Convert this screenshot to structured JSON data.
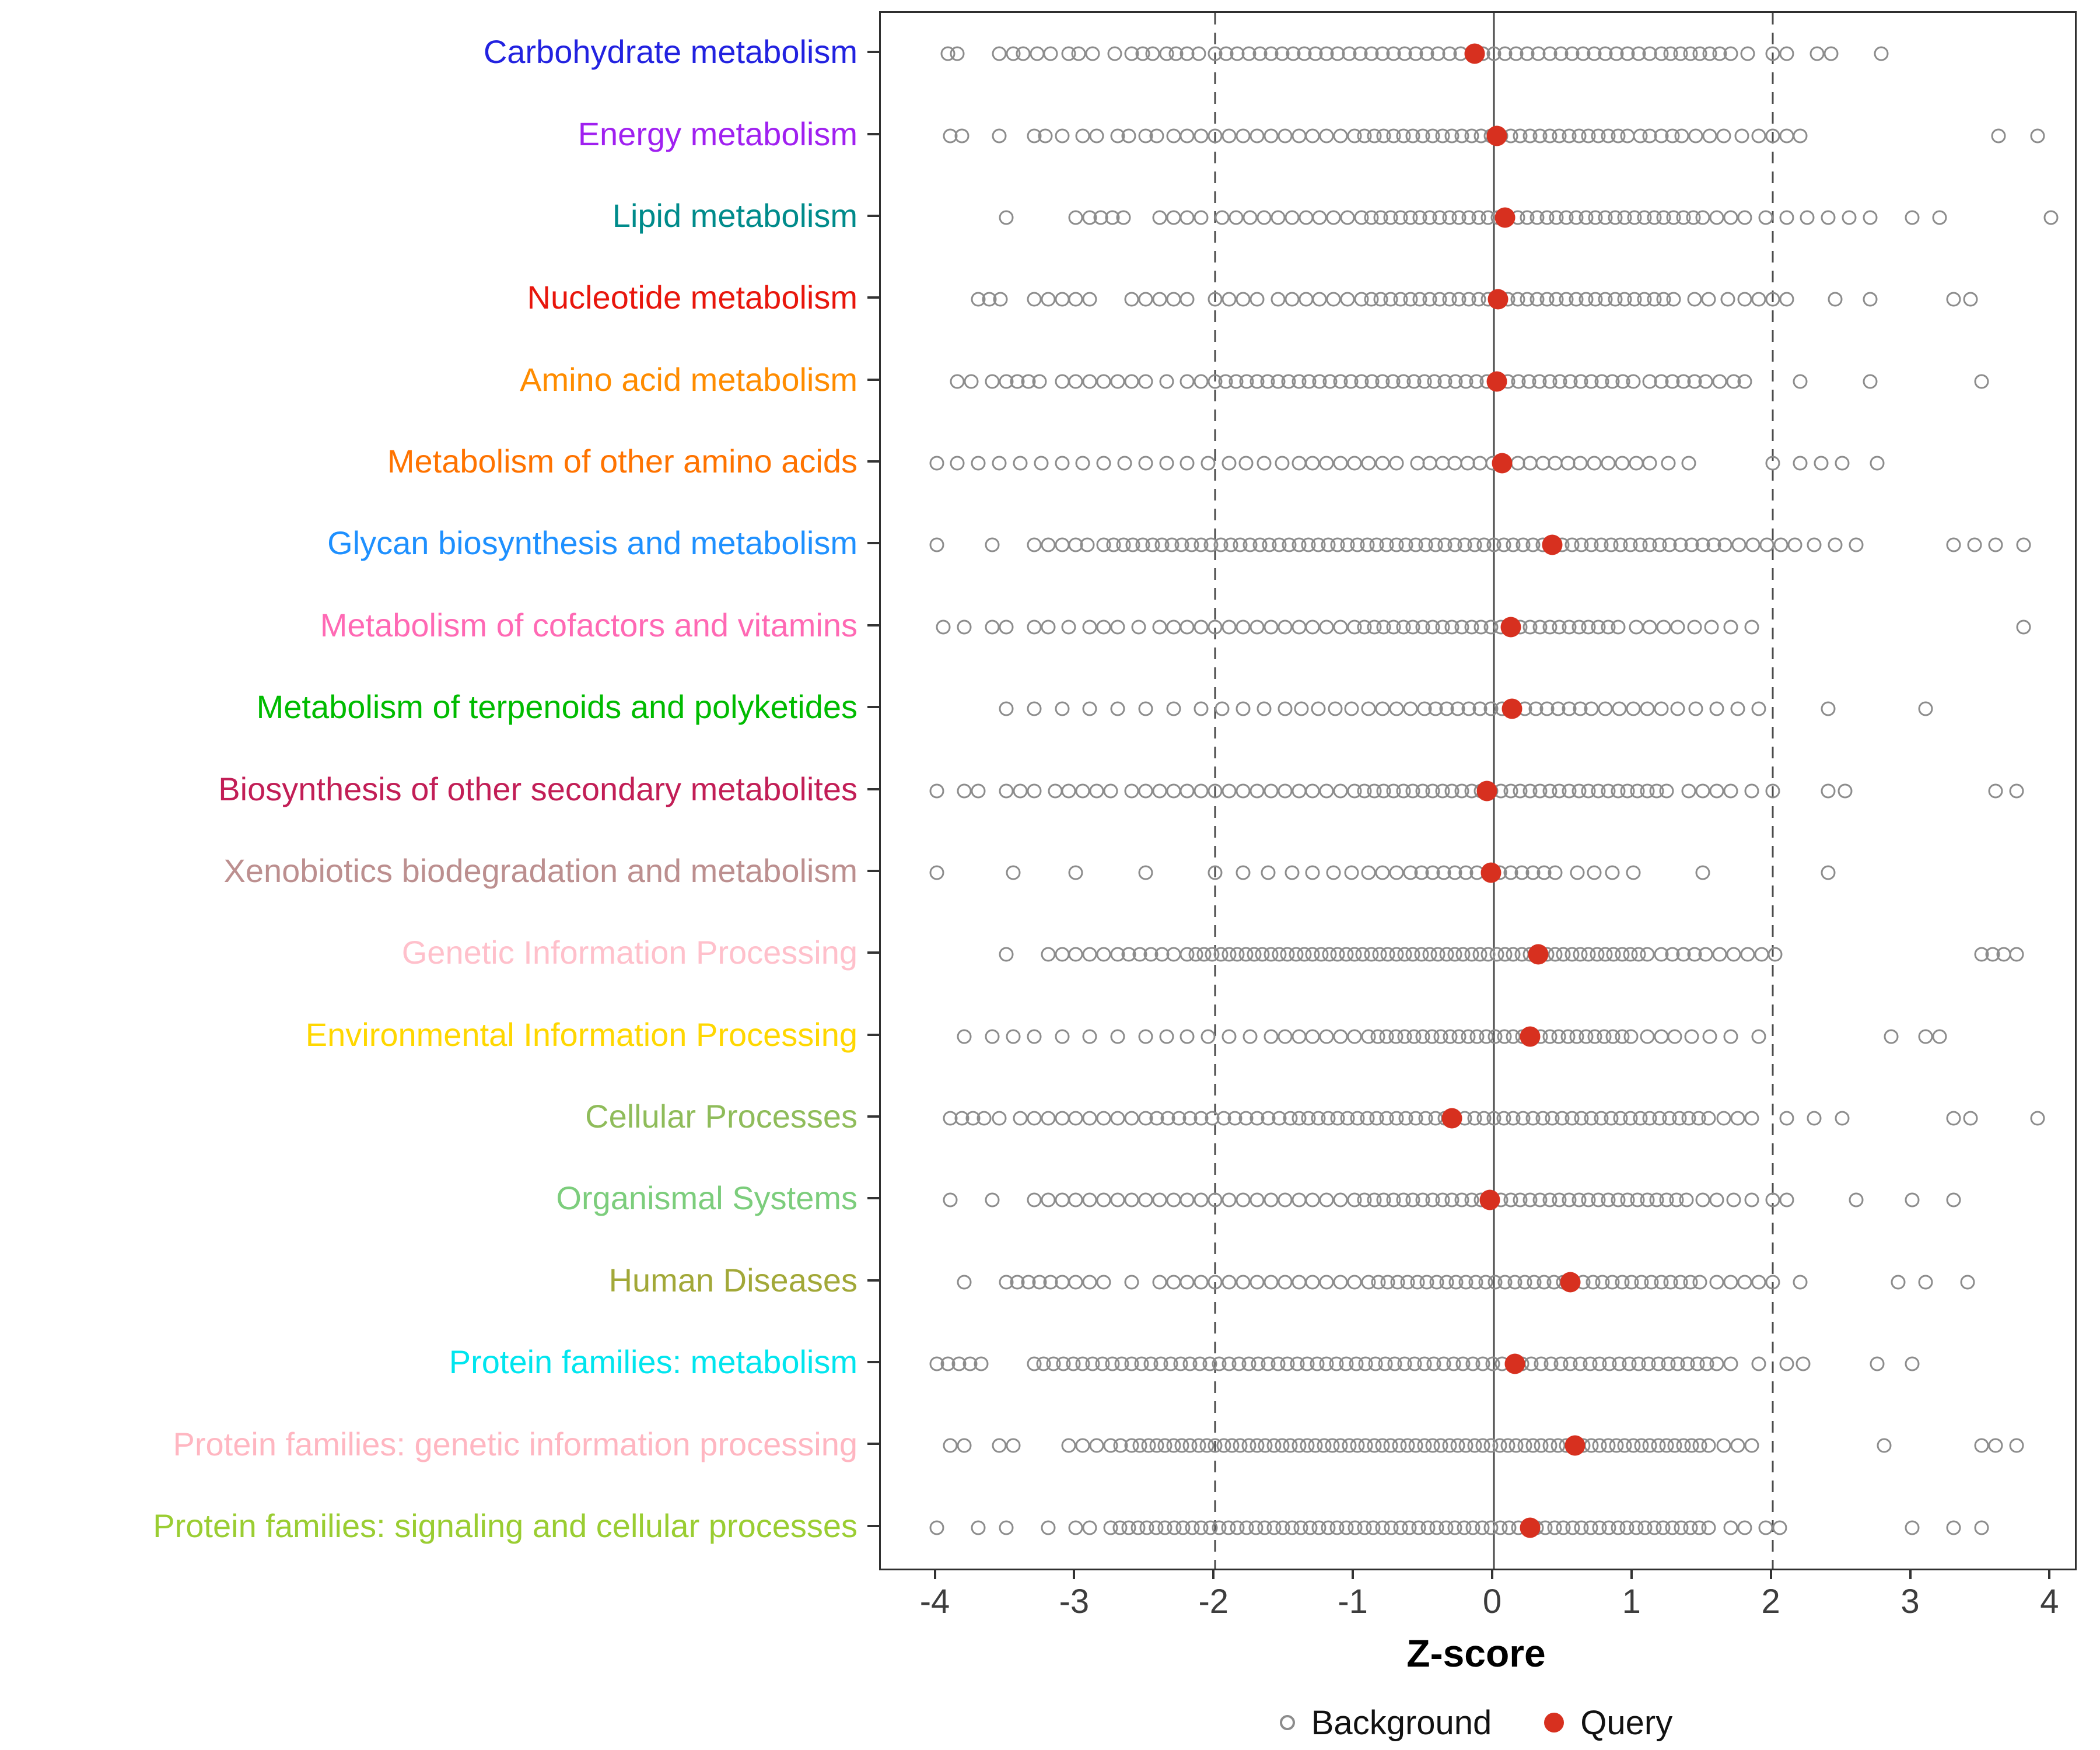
{
  "chart_data": {
    "type": "scatter",
    "title": "",
    "xlabel": "Z-score",
    "xlim": [
      -4.4,
      4.17
    ],
    "x_ticks": [
      -4,
      -3,
      -2,
      -1,
      0,
      1,
      2,
      3,
      4
    ],
    "zero_line": 0,
    "threshold_lines": [
      -2,
      2
    ],
    "grid": false,
    "background_stroke_color": "#8c8c8c",
    "query_color": "#d7301f",
    "legend": {
      "background_label": "Background",
      "query_label": "Query",
      "position": "bottom"
    },
    "categories": [
      {
        "label": "Carbohydrate metabolism",
        "color": "#2222e0",
        "query_z": -0.14,
        "background_runs": [
          [
            -2.0,
            1.12,
            0.08
          ]
        ],
        "background_extra": [
          -3.92,
          -3.85,
          -3.55,
          -3.45,
          -3.38,
          -3.28,
          -3.18,
          -3.05,
          -2.98,
          -2.88,
          -2.72,
          -2.6,
          -2.52,
          -2.45,
          -2.35,
          -2.28,
          -2.2,
          -2.12,
          1.2,
          1.27,
          1.34,
          1.41,
          1.48,
          1.55,
          1.62,
          1.7,
          1.82,
          2.0,
          2.1,
          2.32,
          2.42,
          2.78
        ]
      },
      {
        "label": "Energy metabolism",
        "color": "#a020f0",
        "query_z": 0.02,
        "background_runs": [
          [
            -1.0,
            0.98,
            0.07
          ]
        ],
        "background_extra": [
          -3.9,
          -3.82,
          -3.55,
          -3.3,
          -3.22,
          -3.1,
          -2.95,
          -2.85,
          -2.7,
          -2.62,
          -2.5,
          -2.42,
          -2.3,
          -2.2,
          -2.1,
          -2.0,
          -1.9,
          -1.8,
          -1.7,
          -1.6,
          -1.5,
          -1.4,
          -1.3,
          -1.2,
          -1.1,
          1.05,
          1.12,
          1.2,
          1.28,
          1.35,
          1.45,
          1.55,
          1.65,
          1.78,
          1.9,
          2.0,
          2.1,
          2.2,
          3.62,
          3.9
        ]
      },
      {
        "label": "Lipid metabolism",
        "color": "#008b8b",
        "query_z": 0.08,
        "background_runs": [
          [
            -0.95,
            1.52,
            0.07
          ]
        ],
        "background_extra": [
          -3.5,
          -3.0,
          -2.9,
          -2.82,
          -2.74,
          -2.66,
          -2.4,
          -2.3,
          -2.2,
          -2.1,
          -1.95,
          -1.85,
          -1.75,
          -1.65,
          -1.55,
          -1.45,
          -1.35,
          -1.25,
          -1.15,
          -1.05,
          1.6,
          1.7,
          1.8,
          1.95,
          2.1,
          2.25,
          2.4,
          2.55,
          2.7,
          3.0,
          3.2,
          4.0
        ]
      },
      {
        "label": "Nucleotide metabolism",
        "color": "#e8160c",
        "query_z": 0.03,
        "background_runs": [
          [
            -0.95,
            1.34,
            0.07
          ]
        ],
        "background_extra": [
          -3.7,
          -3.62,
          -3.54,
          -3.3,
          -3.2,
          -3.1,
          -3.0,
          -2.9,
          -2.6,
          -2.5,
          -2.4,
          -2.3,
          -2.2,
          -2.0,
          -1.9,
          -1.8,
          -1.7,
          -1.55,
          -1.45,
          -1.35,
          -1.25,
          -1.15,
          -1.05,
          1.44,
          1.54,
          1.68,
          1.8,
          1.9,
          2.0,
          2.1,
          2.45,
          2.7,
          3.3,
          3.42
        ]
      },
      {
        "label": "Amino acid metabolism",
        "color": "#ff8c00",
        "query_z": 0.02,
        "background_runs": [
          [
            -2.0,
            1.04,
            0.075
          ]
        ],
        "background_extra": [
          -3.85,
          -3.75,
          -3.6,
          -3.5,
          -3.42,
          -3.34,
          -3.26,
          -3.1,
          -3.0,
          -2.9,
          -2.8,
          -2.7,
          -2.6,
          -2.5,
          -2.35,
          -2.2,
          -2.1,
          1.12,
          1.2,
          1.28,
          1.36,
          1.44,
          1.52,
          1.62,
          1.72,
          1.8,
          2.2,
          2.7,
          3.5
        ]
      },
      {
        "label": "Metabolism of other amino acids",
        "color": "#ff7300",
        "query_z": 0.06,
        "background_runs": [
          [
            -0.55,
            0.62,
            0.09
          ]
        ],
        "background_extra": [
          -4.0,
          -3.85,
          -3.7,
          -3.55,
          -3.4,
          -3.25,
          -3.1,
          -2.95,
          -2.8,
          -2.65,
          -2.5,
          -2.35,
          -2.2,
          -2.05,
          -1.9,
          -1.78,
          -1.65,
          -1.52,
          -1.4,
          -1.3,
          -1.2,
          -1.1,
          -1.0,
          -0.9,
          -0.8,
          -0.7,
          0.72,
          0.82,
          0.92,
          1.02,
          1.12,
          1.25,
          1.4,
          2.0,
          2.2,
          2.35,
          2.5,
          2.75
        ]
      },
      {
        "label": "Glycan biosynthesis and metabolism",
        "color": "#1e90ff",
        "query_z": 0.42,
        "background_runs": [
          [
            -2.8,
            1.26,
            0.07
          ]
        ],
        "background_extra": [
          -4.0,
          -3.6,
          -3.3,
          -3.2,
          -3.1,
          -3.0,
          -2.92,
          1.34,
          1.42,
          1.5,
          1.58,
          1.66,
          1.76,
          1.86,
          1.96,
          2.06,
          2.16,
          2.3,
          2.45,
          2.6,
          3.3,
          3.45,
          3.6,
          3.8
        ]
      },
      {
        "label": "Metabolism of cofactors and vitamins",
        "color": "#ff69b4",
        "query_z": 0.12,
        "background_runs": [
          [
            -1.0,
            0.95,
            0.07
          ]
        ],
        "background_extra": [
          -3.95,
          -3.8,
          -3.6,
          -3.5,
          -3.3,
          -3.2,
          -3.05,
          -2.9,
          -2.8,
          -2.7,
          -2.55,
          -2.4,
          -2.3,
          -2.2,
          -2.1,
          -2.0,
          -1.9,
          -1.8,
          -1.7,
          -1.6,
          -1.5,
          -1.4,
          -1.3,
          -1.2,
          -1.1,
          1.02,
          1.12,
          1.22,
          1.32,
          1.44,
          1.56,
          1.7,
          1.85,
          3.8
        ]
      },
      {
        "label": "Metabolism of terpenoids and polyketides",
        "color": "#00bb00",
        "query_z": 0.13,
        "background_runs": [
          [
            -0.5,
            0.62,
            0.08
          ]
        ],
        "background_extra": [
          -3.5,
          -3.3,
          -3.1,
          -2.9,
          -2.7,
          -2.5,
          -2.3,
          -2.1,
          -1.95,
          -1.8,
          -1.65,
          -1.5,
          -1.38,
          -1.26,
          -1.14,
          -1.02,
          -0.9,
          -0.8,
          -0.7,
          -0.6,
          0.7,
          0.8,
          0.9,
          1.0,
          1.1,
          1.2,
          1.32,
          1.45,
          1.6,
          1.75,
          1.9,
          2.4,
          3.1
        ]
      },
      {
        "label": "Biosynthesis of other secondary metabolites",
        "color": "#c21e56",
        "query_z": -0.05,
        "background_runs": [
          [
            -1.0,
            1.3,
            0.07
          ]
        ],
        "background_extra": [
          -4.0,
          -3.8,
          -3.7,
          -3.5,
          -3.4,
          -3.3,
          -3.15,
          -3.05,
          -2.95,
          -2.85,
          -2.75,
          -2.6,
          -2.5,
          -2.4,
          -2.3,
          -2.2,
          -2.1,
          -2.0,
          -1.9,
          -1.8,
          -1.7,
          -1.6,
          -1.5,
          -1.4,
          -1.3,
          -1.2,
          -1.1,
          1.4,
          1.5,
          1.6,
          1.7,
          1.85,
          2.0,
          2.4,
          2.52,
          3.6,
          3.75
        ]
      },
      {
        "label": "Xenobiotics biodegradation and metabolism",
        "color": "#bc8f8f",
        "query_z": -0.02,
        "background_runs": [
          [
            -0.6,
            0.5,
            0.08
          ]
        ],
        "background_extra": [
          -4.0,
          -3.45,
          -3.0,
          -2.5,
          -2.0,
          -1.8,
          -1.62,
          -1.45,
          -1.3,
          -1.15,
          -1.02,
          -0.9,
          -0.8,
          -0.7,
          0.6,
          0.72,
          0.85,
          1.0,
          1.5,
          2.4
        ]
      },
      {
        "label": "Genetic Information Processing",
        "color": "#ffc0cb",
        "query_z": 0.32,
        "background_runs": [
          [
            -2.2,
            1.12,
            0.06
          ]
        ],
        "background_extra": [
          -3.5,
          -3.2,
          -3.1,
          -3.0,
          -2.9,
          -2.8,
          -2.7,
          -2.62,
          -2.54,
          -2.46,
          -2.38,
          -2.3,
          1.2,
          1.28,
          1.36,
          1.44,
          1.52,
          1.62,
          1.72,
          1.82,
          1.92,
          2.02,
          3.5,
          3.58,
          3.66,
          3.75
        ]
      },
      {
        "label": "Environmental Information Processing",
        "color": "#ffd700",
        "query_z": 0.26,
        "background_runs": [
          [
            -0.9,
            1.0,
            0.065
          ]
        ],
        "background_extra": [
          -3.8,
          -3.6,
          -3.45,
          -3.3,
          -3.1,
          -2.9,
          -2.7,
          -2.5,
          -2.35,
          -2.2,
          -2.05,
          -1.9,
          -1.75,
          -1.6,
          -1.5,
          -1.4,
          -1.3,
          -1.2,
          -1.1,
          -1.0,
          1.1,
          1.2,
          1.3,
          1.42,
          1.55,
          1.7,
          1.9,
          2.85,
          3.1,
          3.2
        ]
      },
      {
        "label": "Cellular Processes",
        "color": "#8fbc5a",
        "query_z": -0.3,
        "background_runs": [
          [
            -1.4,
            1.55,
            0.07
          ]
        ],
        "background_extra": [
          -3.9,
          -3.82,
          -3.74,
          -3.66,
          -3.55,
          -3.4,
          -3.3,
          -3.2,
          -3.1,
          -3.0,
          -2.9,
          -2.8,
          -2.7,
          -2.6,
          -2.5,
          -2.42,
          -2.34,
          -2.26,
          -2.18,
          -2.1,
          -2.02,
          -1.94,
          -1.86,
          -1.78,
          -1.7,
          -1.62,
          -1.54,
          -1.46,
          1.65,
          1.75,
          1.85,
          2.1,
          2.3,
          2.5,
          3.3,
          3.42,
          3.9
        ]
      },
      {
        "label": "Organismal Systems",
        "color": "#7ccd7c",
        "query_z": -0.03,
        "background_runs": [
          [
            -1.0,
            1.4,
            0.07
          ]
        ],
        "background_extra": [
          -3.9,
          -3.6,
          -3.3,
          -3.2,
          -3.1,
          -3.0,
          -2.9,
          -2.8,
          -2.7,
          -2.6,
          -2.5,
          -2.4,
          -2.3,
          -2.2,
          -2.1,
          -2.0,
          -1.9,
          -1.8,
          -1.7,
          -1.6,
          -1.5,
          -1.4,
          -1.3,
          -1.2,
          -1.1,
          1.5,
          1.6,
          1.72,
          1.85,
          2.0,
          2.1,
          2.6,
          3.0,
          3.3
        ]
      },
      {
        "label": "Human Diseases",
        "color": "#a2a838",
        "query_z": 0.55,
        "background_runs": [
          [
            -0.9,
            1.5,
            0.07
          ]
        ],
        "background_extra": [
          -3.8,
          -3.5,
          -3.42,
          -3.34,
          -3.26,
          -3.18,
          -3.1,
          -3.0,
          -2.9,
          -2.8,
          -2.6,
          -2.4,
          -2.3,
          -2.2,
          -2.1,
          -2.0,
          -1.9,
          -1.8,
          -1.7,
          -1.6,
          -1.5,
          -1.4,
          -1.3,
          -1.2,
          -1.1,
          -1.0,
          1.6,
          1.7,
          1.8,
          1.9,
          2.0,
          2.2,
          2.9,
          3.1,
          3.4
        ]
      },
      {
        "label": "Protein families: metabolism",
        "color": "#00e5ee",
        "query_z": 0.15,
        "background_runs": [
          [
            -3.3,
            1.6,
            0.07
          ]
        ],
        "background_extra": [
          -4.0,
          -3.92,
          -3.84,
          -3.76,
          -3.68,
          1.7,
          1.9,
          2.1,
          2.22,
          2.75,
          3.0
        ]
      },
      {
        "label": "Protein families: genetic information processing",
        "color": "#ffb6c1",
        "query_z": 0.58,
        "background_runs": [
          [
            -2.6,
            1.55,
            0.06
          ]
        ],
        "background_extra": [
          -3.9,
          -3.8,
          -3.55,
          -3.45,
          -3.05,
          -2.95,
          -2.85,
          -2.75,
          -2.68,
          1.65,
          1.75,
          1.85,
          2.8,
          3.5,
          3.6,
          3.75
        ]
      },
      {
        "label": "Protein families: signaling and cellular processes",
        "color": "#9acd32",
        "query_z": 0.26,
        "background_runs": [
          [
            -2.75,
            1.6,
            0.065
          ]
        ],
        "background_extra": [
          -4.0,
          -3.7,
          -3.5,
          -3.2,
          -3.0,
          -2.9,
          1.7,
          1.8,
          1.95,
          2.05,
          3.0,
          3.3,
          3.5
        ]
      }
    ]
  }
}
